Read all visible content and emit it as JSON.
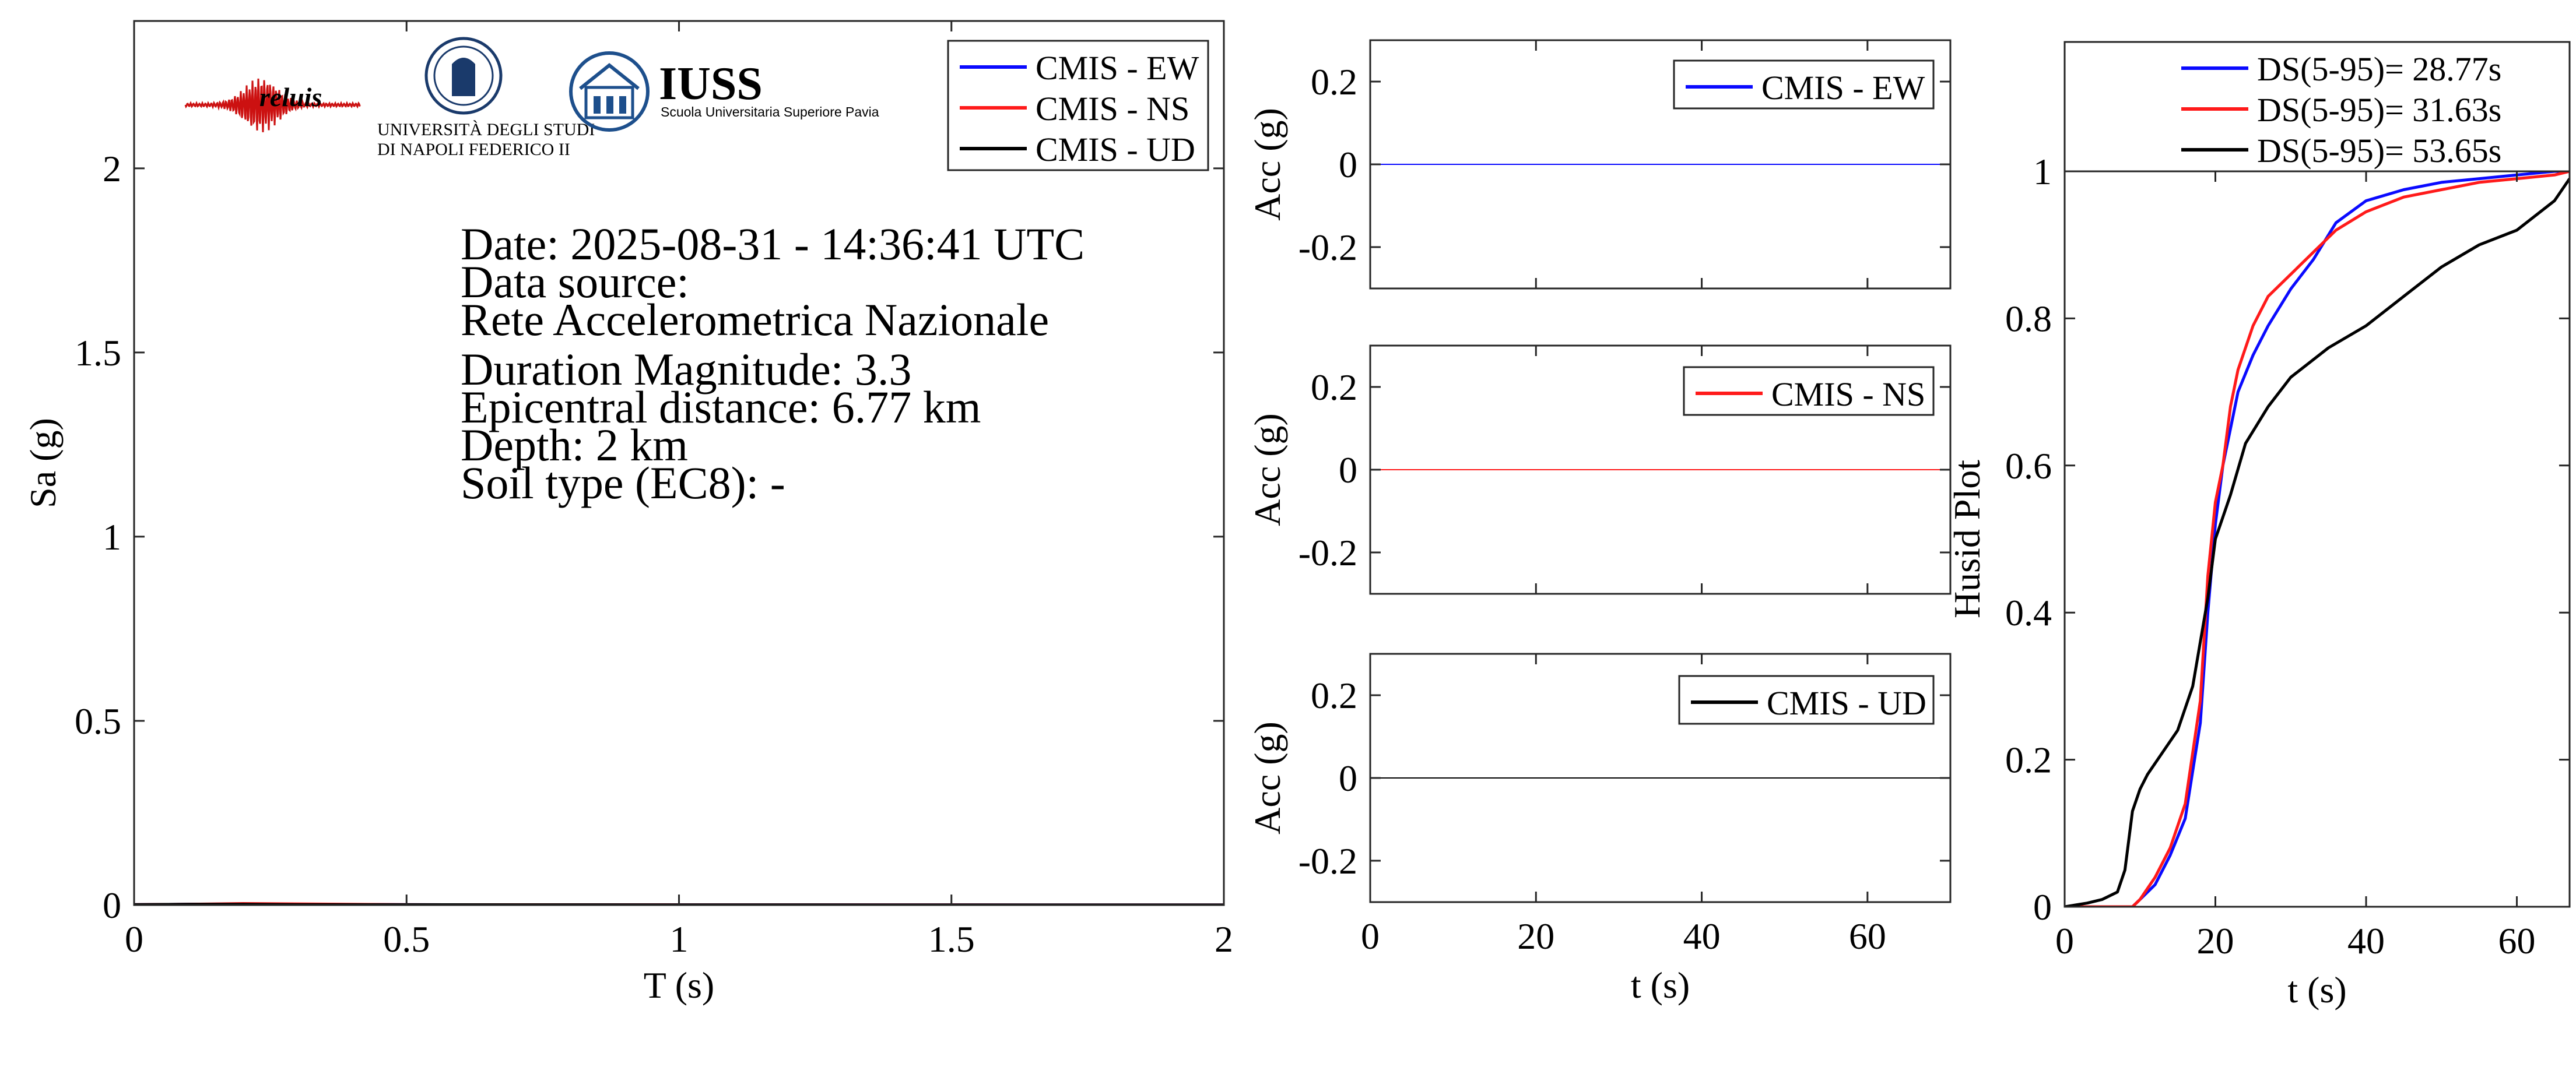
{
  "colors": {
    "ew": "#0a0aff",
    "ns": "#ff1a1a",
    "ud": "#000000",
    "axis": "#262626",
    "reluis": "#cc1111",
    "univ": "#1a3a6b",
    "iuss": "#1d4f8c"
  },
  "logos": {
    "reluis": {
      "text": "reluis"
    },
    "unina": {
      "line1": "UNIVERSITÀ DEGLI STUDI",
      "line2": "DI NAPOLI FEDERICO II"
    },
    "iuss": {
      "title": "IUSS",
      "subtitle": "Scuola Universitaria Superiore Pavia"
    }
  },
  "info": {
    "date": "Date: 2025-08-31 - 14:36:41 UTC",
    "source_label": "Data source:",
    "source": "Rete Accelerometrica Nazionale",
    "magnitude": "Duration Magnitude: 3.3",
    "distance": "Epicentral distance: 6.77 km",
    "depth": "Depth: 2 km",
    "soil": "Soil type (EC8): -"
  },
  "chart_data": [
    {
      "type": "line",
      "id": "spectrum",
      "xlabel": "T (s)",
      "ylabel": "Sa (g)",
      "xlim": [
        0,
        2
      ],
      "ylim": [
        0,
        2.4
      ],
      "xticks": [
        0,
        0.5,
        1,
        1.5,
        2
      ],
      "xtick_labels": [
        "0",
        "0.5",
        "1",
        "1.5",
        "2"
      ],
      "yticks": [
        0,
        0.5,
        1,
        1.5,
        2
      ],
      "ytick_labels": [
        "0",
        "0.5",
        "1",
        "1.5",
        "2"
      ],
      "grid": false,
      "legend": "top-right",
      "series": [
        {
          "name": "CMIS - EW",
          "color_key": "ew",
          "x": [
            0,
            0.1,
            0.2,
            0.3,
            0.5,
            1,
            1.5,
            2
          ],
          "y": [
            0.001,
            0.002,
            0.003,
            0.002,
            0.001,
            0.0005,
            0.0003,
            0.0002
          ]
        },
        {
          "name": "CMIS - NS",
          "color_key": "ns",
          "x": [
            0,
            0.1,
            0.2,
            0.3,
            0.5,
            1,
            1.5,
            2
          ],
          "y": [
            0.001,
            0.002,
            0.004,
            0.003,
            0.001,
            0.0005,
            0.0003,
            0.0002
          ]
        },
        {
          "name": "CMIS - UD",
          "color_key": "ud",
          "x": [
            0,
            0.1,
            0.2,
            0.3,
            0.5,
            1,
            1.5,
            2
          ],
          "y": [
            0.001,
            0.002,
            0.002,
            0.001,
            0.0008,
            0.0004,
            0.0002,
            0.0001
          ]
        }
      ]
    },
    {
      "type": "line",
      "id": "acc-ew",
      "xlabel": "",
      "ylabel": "Acc (g)",
      "xlim": [
        0,
        70
      ],
      "ylim": [
        -0.3,
        0.3
      ],
      "xticks": [
        0,
        20,
        40,
        60
      ],
      "xtick_labels": [],
      "yticks": [
        0.2,
        0,
        -0.2
      ],
      "ytick_labels": [
        "0.2",
        "0",
        "-0.2"
      ],
      "grid": false,
      "legend": "top-right",
      "series": [
        {
          "name": "CMIS - EW",
          "color_key": "ew",
          "x": [
            0,
            70
          ],
          "y": [
            0,
            0
          ]
        }
      ]
    },
    {
      "type": "line",
      "id": "acc-ns",
      "xlabel": "",
      "ylabel": "Acc (g)",
      "xlim": [
        0,
        70
      ],
      "ylim": [
        -0.3,
        0.3
      ],
      "xticks": [
        0,
        20,
        40,
        60
      ],
      "xtick_labels": [],
      "yticks": [
        0.2,
        0,
        -0.2
      ],
      "ytick_labels": [
        "0.2",
        "0",
        "-0.2"
      ],
      "grid": false,
      "legend": "top-right",
      "series": [
        {
          "name": "CMIS - NS",
          "color_key": "ns",
          "x": [
            0,
            70
          ],
          "y": [
            0,
            0
          ]
        }
      ]
    },
    {
      "type": "line",
      "id": "acc-ud",
      "xlabel": "t (s)",
      "ylabel": "Acc (g)",
      "xlim": [
        0,
        70
      ],
      "ylim": [
        -0.3,
        0.3
      ],
      "xticks": [
        0,
        20,
        40,
        60
      ],
      "xtick_labels": [
        "0",
        "20",
        "40",
        "60"
      ],
      "yticks": [
        0.2,
        0,
        -0.2
      ],
      "ytick_labels": [
        "0.2",
        "0",
        "-0.2"
      ],
      "grid": false,
      "legend": "top-right",
      "series": [
        {
          "name": "CMIS - UD",
          "color_key": "ud",
          "x": [
            0,
            70
          ],
          "y": [
            0,
            0
          ]
        }
      ]
    },
    {
      "type": "line",
      "id": "husid",
      "xlabel": "t (s)",
      "ylabel": "Husid Plot",
      "xlim": [
        0,
        67
      ],
      "ylim": [
        0,
        1
      ],
      "xticks": [
        0,
        20,
        40,
        60
      ],
      "xtick_labels": [
        "0",
        "20",
        "40",
        "60"
      ],
      "yticks": [
        0,
        0.2,
        0.4,
        0.6,
        0.8,
        1
      ],
      "ytick_labels": [
        "0",
        "0.2",
        "0.4",
        "0.6",
        "0.8",
        "1"
      ],
      "grid": false,
      "legend": "top, outside",
      "series": [
        {
          "name": "DS(5-95)= 28.77s",
          "color_key": "ew",
          "x": [
            0,
            9,
            10,
            12,
            14,
            16,
            18,
            19,
            20,
            21,
            22,
            23,
            25,
            27,
            30,
            33,
            36,
            40,
            45,
            50,
            55,
            60,
            65,
            67
          ],
          "y": [
            0,
            0,
            0.01,
            0.03,
            0.07,
            0.12,
            0.25,
            0.4,
            0.52,
            0.6,
            0.65,
            0.7,
            0.75,
            0.79,
            0.84,
            0.88,
            0.93,
            0.96,
            0.975,
            0.985,
            0.99,
            0.995,
            1.0,
            1.0
          ]
        },
        {
          "name": "DS(5-95)= 31.63s",
          "color_key": "ns",
          "x": [
            0,
            9,
            10,
            12,
            14,
            16,
            18,
            19,
            20,
            21,
            22,
            23,
            25,
            27,
            30,
            33,
            36,
            40,
            45,
            50,
            55,
            60,
            65,
            67
          ],
          "y": [
            0,
            0,
            0.01,
            0.04,
            0.08,
            0.14,
            0.28,
            0.45,
            0.55,
            0.6,
            0.68,
            0.73,
            0.79,
            0.83,
            0.86,
            0.89,
            0.92,
            0.945,
            0.965,
            0.975,
            0.985,
            0.99,
            0.995,
            1.0
          ]
        },
        {
          "name": "DS(5-95)= 53.65s",
          "color_key": "ud",
          "x": [
            0,
            3,
            5,
            7,
            8,
            9,
            10,
            11,
            13,
            15,
            17,
            19,
            20,
            22,
            24,
            27,
            30,
            35,
            40,
            45,
            50,
            55,
            60,
            65,
            67
          ],
          "y": [
            0,
            0.005,
            0.01,
            0.02,
            0.05,
            0.13,
            0.16,
            0.18,
            0.21,
            0.24,
            0.3,
            0.42,
            0.5,
            0.56,
            0.63,
            0.68,
            0.72,
            0.76,
            0.79,
            0.83,
            0.87,
            0.9,
            0.92,
            0.96,
            0.99
          ]
        }
      ]
    }
  ]
}
